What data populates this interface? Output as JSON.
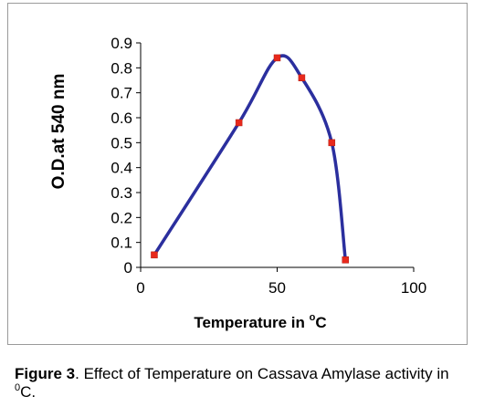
{
  "chart_data": {
    "type": "line",
    "xlabel": "Temperature in ",
    "xlabel_sup": "o",
    "xlabel_unit": "C",
    "ylabel": "O.D.at 540 nm",
    "xlim": [
      0,
      100
    ],
    "ylim": [
      0,
      0.9
    ],
    "x_ticks": [
      "0",
      "50",
      "100"
    ],
    "y_ticks": [
      "0",
      "0.1",
      "0.2",
      "0.3",
      "0.4",
      "0.5",
      "0.6",
      "0.7",
      "0.8",
      "0.9"
    ],
    "grid": false,
    "legend": "none",
    "line_color": "#2b2f9e",
    "marker_color": "#e8291c",
    "series": [
      {
        "x": [
          5,
          36,
          50,
          59,
          70,
          75
        ],
        "y": [
          0.05,
          0.58,
          0.84,
          0.76,
          0.5,
          0.03
        ]
      }
    ]
  },
  "caption": {
    "label": "Figure 3",
    "text": ". Effect of Temperature on Cassava Amylase activity in ",
    "sup": "0",
    "unit": "C."
  }
}
